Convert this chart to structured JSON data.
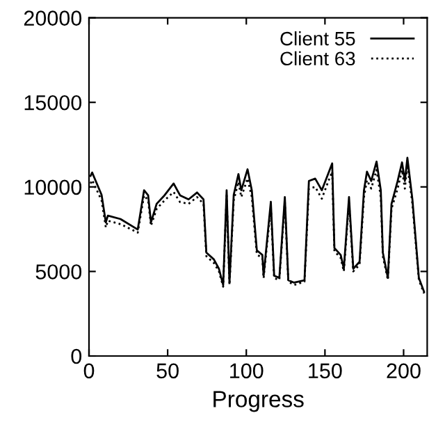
{
  "chart_data": {
    "type": "line",
    "xlabel": "Progress",
    "xlim": [
      0,
      215
    ],
    "xticks": [
      0,
      50,
      100,
      150,
      200
    ],
    "ylim": [
      0,
      20000
    ],
    "yticks": [
      0,
      5000,
      10000,
      15000,
      20000
    ],
    "grid": false,
    "legend": "top right",
    "tick_labels": true,
    "series": [
      {
        "name": "Client 55",
        "color": "#000000",
        "line_style": "solid",
        "x": [
          1,
          2,
          8,
          10.7,
          12,
          20,
          31,
          35,
          37.6,
          39.4,
          43,
          48,
          53.8,
          57.9,
          63.3,
          68.7,
          72.8,
          74.6,
          79.4,
          82.6,
          85.3,
          87.5,
          89.3,
          92,
          95,
          96.8,
          100.8,
          103.5,
          106.7,
          110.2,
          111,
          115.6,
          117.7,
          121,
          124.5,
          126.7,
          130.4,
          137,
          139.8,
          143.8,
          148,
          152,
          154.6,
          156,
          160,
          162,
          165.3,
          168,
          172,
          174.8,
          176.7,
          179.4,
          182.8,
          185.5,
          186.8,
          190,
          192.3,
          196.2,
          199,
          200.8,
          202.4,
          205.6,
          209.7,
          213
        ],
        "values": [
          10650,
          10850,
          9530,
          7900,
          8300,
          8100,
          7480,
          9800,
          9500,
          7900,
          9000,
          9500,
          10200,
          9500,
          9260,
          9670,
          9260,
          6120,
          5710,
          5160,
          4200,
          9800,
          4340,
          9530,
          10760,
          9800,
          11040,
          9800,
          6250,
          5980,
          4750,
          9120,
          4750,
          4620,
          9400,
          4480,
          4340,
          4480,
          10350,
          10490,
          9800,
          10760,
          11390,
          6390,
          5980,
          5160,
          9400,
          5160,
          5570,
          9800,
          10900,
          10350,
          11500,
          9800,
          6120,
          4620,
          8990,
          10350,
          11450,
          10350,
          11720,
          9260,
          4620,
          3800
        ]
      },
      {
        "name": "Client 63",
        "color": "#000000",
        "line_style": "dotted",
        "x": [
          1,
          2,
          8,
          10.7,
          12,
          20,
          31,
          35,
          37.6,
          39.4,
          43,
          48,
          53.8,
          57.9,
          63.3,
          68.7,
          72.8,
          74.6,
          79.4,
          82.6,
          85.3,
          87.5,
          89.3,
          92,
          95,
          96.8,
          100.8,
          103.5,
          106.7,
          110.2,
          111,
          115.6,
          117.7,
          121,
          124.5,
          126.7,
          130.4,
          137,
          139.8,
          143.8,
          148,
          152,
          154.6,
          156,
          160,
          162,
          165.3,
          168,
          172,
          174.8,
          176.7,
          179.4,
          182.8,
          185.5,
          186.8,
          190,
          192.3,
          196.2,
          199,
          200.8,
          202.4,
          205.6,
          209.7,
          213
        ],
        "values": [
          10200,
          10400,
          9200,
          7600,
          8000,
          7800,
          7300,
          9500,
          9200,
          7700,
          8700,
          9200,
          9700,
          9100,
          9000,
          9400,
          9000,
          5900,
          5500,
          5000,
          4100,
          9500,
          4200,
          9200,
          10300,
          9400,
          10500,
          9400,
          6000,
          5800,
          4600,
          8800,
          4600,
          4500,
          9100,
          4400,
          4200,
          4400,
          9900,
          10000,
          9300,
          10300,
          10900,
          6200,
          5800,
          5000,
          9100,
          5000,
          5400,
          9400,
          10400,
          9900,
          11000,
          9400,
          5900,
          4500,
          8700,
          9900,
          11000,
          9900,
          11300,
          9000,
          4500,
          3700
        ]
      }
    ]
  }
}
